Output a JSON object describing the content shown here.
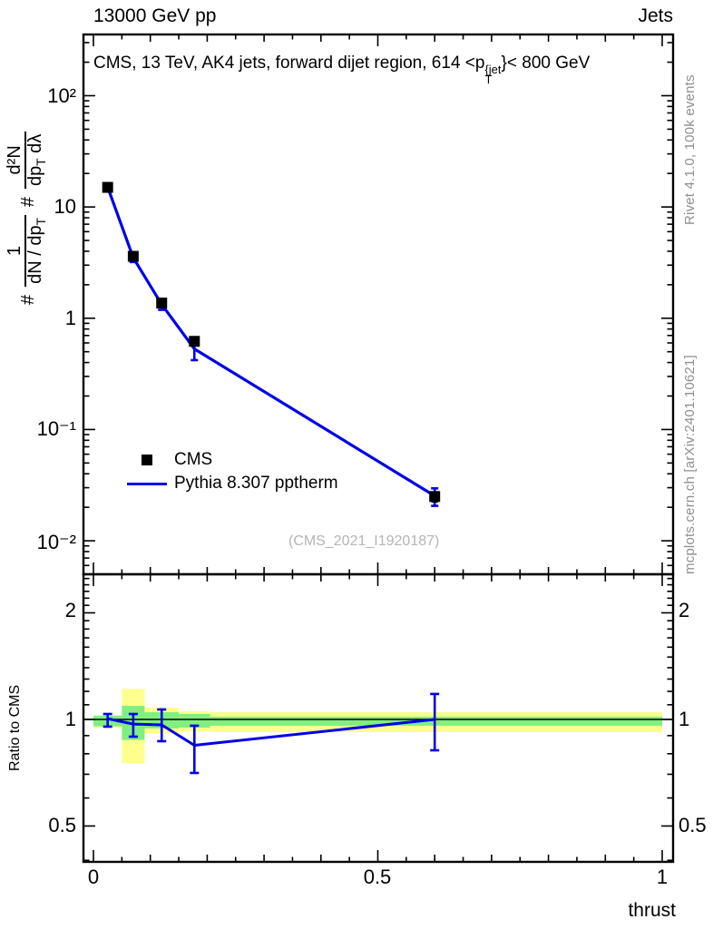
{
  "header": {
    "left": "13000 GeV pp",
    "right": "Jets"
  },
  "title": {
    "text": "CMS, 13 TeV, AK4 jets, forward dijet region, 614 <p",
    "sup": "{jet",
    "sub": "T",
    "suffix": "}< 800 GeV"
  },
  "ylabel_main": {
    "hash1": "#",
    "frac1_num": "1",
    "frac1_den_a": "dN / dp",
    "frac1_den_sub": "T",
    "hash2": "#",
    "frac2_num": "d²N",
    "frac2_den_a": "dp",
    "frac2_den_sub": "T",
    "frac2_den_b": " dλ"
  },
  "ylabel_ratio": "Ratio to CMS",
  "watermark": "(CMS_2021_I1920187)",
  "sidebar": {
    "top": "Rivet 4.1.0,  100k events",
    "bottom": "mcplots.cern.ch [arXiv:2401.10621]"
  },
  "legend": {
    "items": [
      {
        "label": "CMS",
        "marker": "square",
        "color": "#000000"
      },
      {
        "label": "Pythia 8.307 pptherm",
        "marker": "line",
        "color": "#0000e6"
      }
    ]
  },
  "colors": {
    "line_blue": "#0000e6",
    "band_green": "#80ef80",
    "band_yellow": "#ffff8d",
    "frame": "#000000",
    "gray_text": "#8f8f8f",
    "watermark_gray": "#b5b5b5"
  },
  "chart_data": {
    "type": "line",
    "title": "CMS, 13 TeV, AK4 jets, forward dijet region, 614 < pT{jet} < 800 GeV",
    "xlabel": "thrust",
    "xlim": [
      0,
      1
    ],
    "xticks": [
      0,
      0.5,
      1
    ],
    "xtick_labels": [
      "0",
      "0.5",
      "1"
    ],
    "x_minor_step": 0.05,
    "legend_position": "left-middle",
    "grid": false,
    "main_panel": {
      "ylog": true,
      "ylim": [
        0.005,
        355
      ],
      "yticks": [
        100,
        10,
        1,
        0.1,
        0.01
      ],
      "ytick_labels": [
        "10²",
        "10",
        "1",
        "10⁻¹",
        "10⁻²"
      ],
      "series": [
        {
          "name": "CMS",
          "type": "points",
          "color": "#000000",
          "x": [
            0.025,
            0.07,
            0.12,
            0.1775,
            0.6
          ],
          "y": [
            15.0,
            3.6,
            1.37,
            0.62,
            0.025
          ],
          "ylo": [
            13.8,
            3.35,
            1.28,
            0.57,
            0.0225
          ],
          "yhi": [
            16.3,
            3.85,
            1.47,
            0.67,
            0.0272
          ]
        },
        {
          "name": "Pythia 8.307 pptherm",
          "type": "line",
          "color": "#0000e6",
          "x": [
            0.025,
            0.07,
            0.12,
            0.1775,
            0.6
          ],
          "y": [
            15.1,
            3.5,
            1.33,
            0.53,
            0.0253
          ],
          "ylo": [
            14.4,
            3.2,
            1.19,
            0.42,
            0.0206
          ],
          "yhi": [
            15.8,
            3.74,
            1.46,
            0.6,
            0.0296
          ]
        }
      ]
    },
    "ratio_panel": {
      "ylog": true,
      "ylim": [
        0.396,
        2.57
      ],
      "ref_line": 1,
      "yticks": [
        2,
        1,
        0.5
      ],
      "ytick_labels": [
        "2",
        "1",
        "0.5"
      ],
      "bands": [
        {
          "x0": 0.0,
          "x1": 0.05,
          "green_lo": 0.956,
          "green_hi": 1.024,
          "yellow_lo": 0.948,
          "yellow_hi": 1.03
        },
        {
          "x0": 0.05,
          "x1": 0.09,
          "green_lo": 0.875,
          "green_hi": 1.092,
          "yellow_lo": 0.753,
          "yellow_hi": 1.22
        },
        {
          "x0": 0.09,
          "x1": 0.15,
          "green_lo": 0.943,
          "green_hi": 1.048,
          "yellow_lo": 0.915,
          "yellow_hi": 1.08
        },
        {
          "x0": 0.15,
          "x1": 0.205,
          "green_lo": 0.948,
          "green_hi": 1.036,
          "yellow_lo": 0.926,
          "yellow_hi": 1.055
        },
        {
          "x0": 0.205,
          "x1": 1.0,
          "green_lo": 0.96,
          "green_hi": 1.018,
          "yellow_lo": 0.921,
          "yellow_hi": 1.048
        }
      ],
      "series": [
        {
          "name": "Pythia 8.307 pptherm / CMS",
          "color": "#0000e6",
          "x": [
            0.025,
            0.07,
            0.12,
            0.1775,
            0.6
          ],
          "y": [
            1.005,
            0.97,
            0.965,
            0.845,
            1.0
          ],
          "ylo": [
            0.954,
            0.894,
            0.868,
            0.706,
            0.818
          ],
          "yhi": [
            1.036,
            1.036,
            1.067,
            0.96,
            1.18
          ]
        }
      ]
    }
  }
}
